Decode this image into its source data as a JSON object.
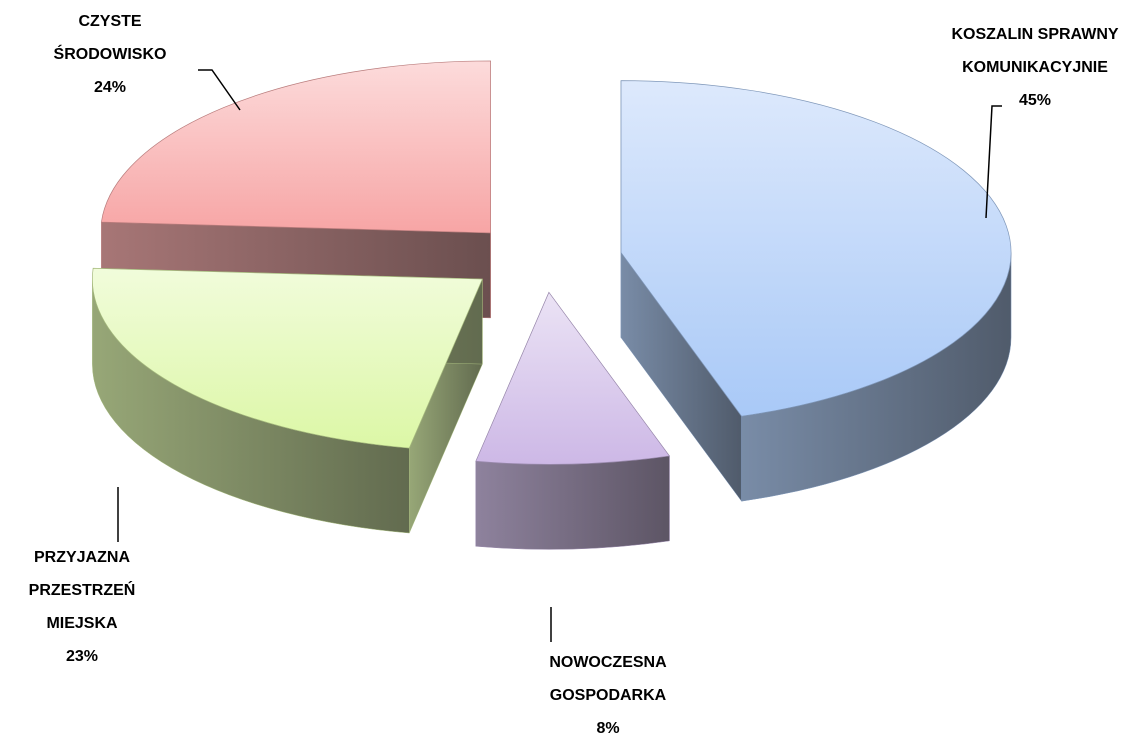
{
  "chart_data": {
    "type": "pie3d",
    "categories": [
      "KOSZALIN SPRAWNY KOMUNIKACYJNIE",
      "NOWOCZESNA GOSPODARKA",
      "PRZYJAZNA PRZESTRZEŃ MIEJSKA",
      "CZYSTE ŚRODOWISKO"
    ],
    "values": [
      45,
      8,
      23,
      24
    ],
    "value_labels": [
      "45%",
      "8%",
      "23%",
      "24%"
    ],
    "colors": [
      "#a9c9f7",
      "#cdb8e6",
      "#dcf7a6",
      "#f7a5a5"
    ]
  }
}
